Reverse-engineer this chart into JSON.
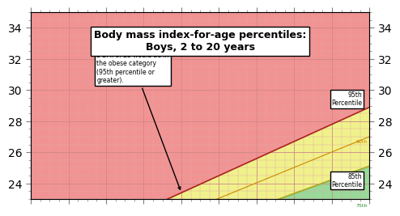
{
  "title_line1": "Body mass index-for-age percentiles:",
  "title_line2": "Boys, 2 to 20 years",
  "x_min": 2,
  "x_max": 20,
  "y_min": 23,
  "y_max": 35,
  "yticks": [
    24,
    26,
    28,
    30,
    32,
    34
  ],
  "bg_color": "#f5c5c5",
  "pink_color": "#f08080",
  "yellow_color": "#f0f080",
  "green_color": "#80d080",
  "grid_color": "#cc8888",
  "grid_minor_color": "#ddaaaa",
  "p95_color": "#cc4444",
  "p85_color": "#cccc44",
  "p75_color": "#44cc44",
  "p90_color": "#ccaa44",
  "annotation1_title": "A 10-year-old boy with\na BMI of 23 would be in\nthe obese category\n(95th percentile or\ngreater).",
  "annotation2_title": "A 10-year-old boy with\na BMI of 21 would be in",
  "label_95": "95th\nPercentile",
  "label_85": "85th\nPercentile",
  "label_90": "90th",
  "label_75": "75th"
}
